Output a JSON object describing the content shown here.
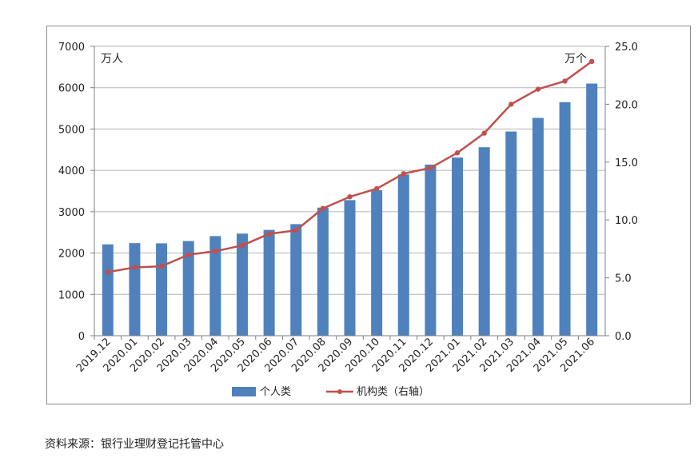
{
  "source_note": "资料来源：银行业理财登记托管中心",
  "chart_data": {
    "type": "bar",
    "categories": [
      "2019.12",
      "2020.01",
      "2020.02",
      "2020.03",
      "2020.04",
      "2020.05",
      "2020.06",
      "2020.07",
      "2020.08",
      "2020.09",
      "2020.10",
      "2020.11",
      "2020.12",
      "2021.01",
      "2021.02",
      "2021.03",
      "2021.04",
      "2021.05",
      "2021.06"
    ],
    "series": [
      {
        "name": "个人类",
        "type": "bar",
        "axis": "left",
        "color": "#4f81bd",
        "values": [
          2210,
          2240,
          2235,
          2290,
          2410,
          2470,
          2560,
          2700,
          3100,
          3280,
          3520,
          3900,
          4140,
          4310,
          4560,
          4940,
          5270,
          5650,
          6100
        ]
      },
      {
        "name": "机构类（右轴）",
        "type": "line",
        "axis": "right",
        "color": "#c0504d",
        "values": [
          5.5,
          5.9,
          6.0,
          7.0,
          7.3,
          7.8,
          8.8,
          9.1,
          11.0,
          12.0,
          12.7,
          14.0,
          14.5,
          15.8,
          17.5,
          20.0,
          21.3,
          22.0,
          23.7
        ]
      }
    ],
    "left_axis": {
      "unit": "万人",
      "ylim": [
        0,
        7000
      ],
      "ticks": [
        "0",
        "1000",
        "2000",
        "3000",
        "4000",
        "5000",
        "6000",
        "7000"
      ]
    },
    "right_axis": {
      "unit": "万个",
      "ylim": [
        0,
        25
      ],
      "ticks": [
        "0.0",
        "5.0",
        "10.0",
        "15.0",
        "20.0",
        "25.0"
      ]
    },
    "grid": true,
    "legend_position": "bottom"
  }
}
